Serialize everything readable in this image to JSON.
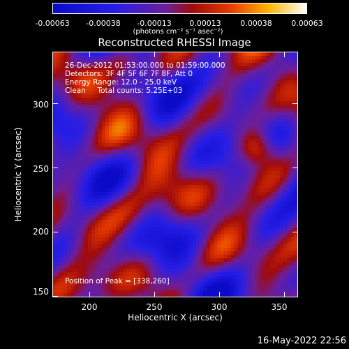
{
  "colorbar": {
    "ticks": [
      "-0.00063",
      "-0.00038",
      "-0.00013",
      "0.00013",
      "0.00038",
      "0.00063"
    ],
    "units": "(photons cm⁻² s⁻¹ asec⁻²)"
  },
  "plot": {
    "title": "Reconstructed RHESSI Image",
    "info_lines": [
      "26-Dec-2012 01:53:00.000 to 01:59:00.000",
      "Detectors: 3F 4F 5F 6F 7F 8F, Att 0",
      "Energy Range: 12.0 - 25.0 keV",
      "Clean     Total counts: 5.25E+03"
    ],
    "peak_text": "Position of Peak = [338,260]",
    "xlabel": "Heliocentric X (arcsec)",
    "ylabel": "Heliocentric Y (arcsec)",
    "xticks": [
      "200",
      "250",
      "300",
      "350"
    ],
    "yticks": [
      "300",
      "250",
      "200",
      "150"
    ],
    "xlim": [
      170,
      360
    ],
    "ylim": [
      148,
      340
    ]
  },
  "timestamp": "16-May-2022 22:56",
  "colors": {
    "background": "#000000",
    "text": "#ffffff"
  }
}
